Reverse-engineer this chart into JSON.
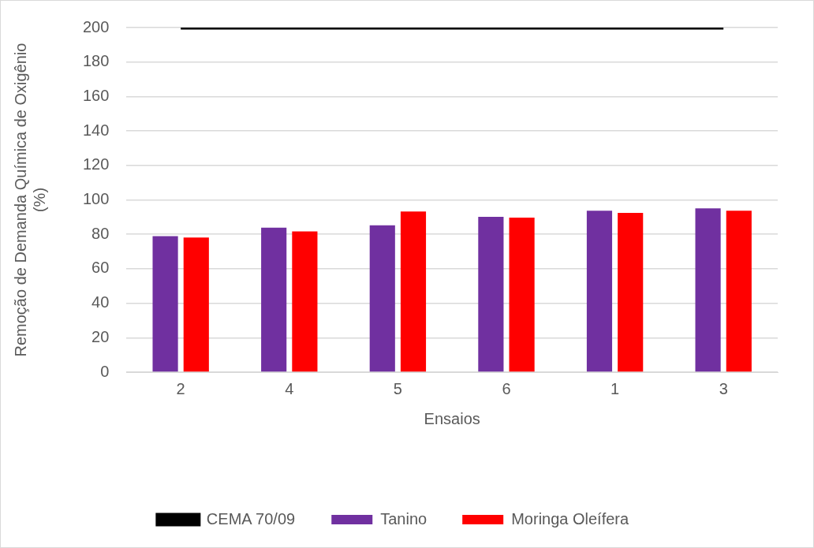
{
  "chart_data": {
    "type": "bar",
    "xlabel": "Ensaios",
    "ylabel": "Remoção de Demanda Química de Oxigênio (%)",
    "categories": [
      "2",
      "4",
      "5",
      "6",
      "1",
      "3"
    ],
    "series": [
      {
        "name": "Tanino",
        "color": "#7030a0",
        "values": [
          79,
          83.9,
          85.2,
          90.2,
          93.7,
          95.1
        ]
      },
      {
        "name": "Moringa Oleífera",
        "color": "#ff0000",
        "values": [
          78.1,
          81.7,
          93.3,
          89.7,
          92.4,
          93.7
        ]
      },
      {
        "name": "CEMA 70/09",
        "type": "line",
        "color": "#000000",
        "values": [
          200,
          200,
          200,
          200,
          200,
          200
        ],
        "marker": "none"
      }
    ],
    "ylim": [
      0,
      200
    ],
    "yticks": [
      0,
      20,
      40,
      60,
      80,
      100,
      120,
      140,
      160,
      180,
      200
    ],
    "grid": "y",
    "legend": "bottom"
  }
}
